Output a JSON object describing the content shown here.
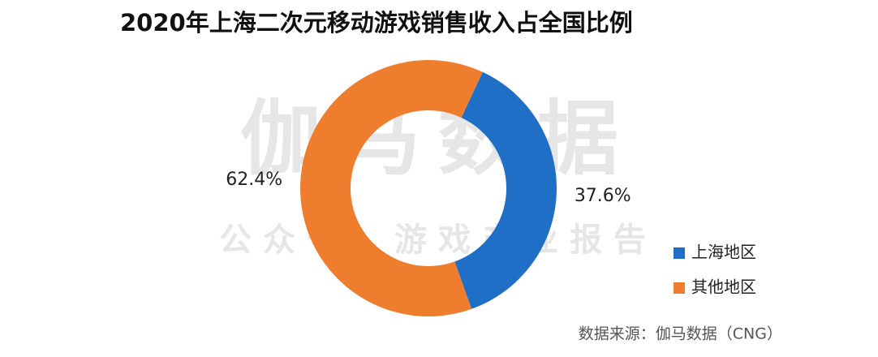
{
  "chart_data": {
    "type": "donut",
    "title": "2020年上海二次元移动游戏销售收入占全国比例",
    "categories": [
      "上海地区",
      "其他地区"
    ],
    "values": [
      37.6,
      62.4
    ],
    "value_labels": [
      "37.6%",
      "62.4%"
    ],
    "colors": [
      "#1f6fc6",
      "#ef7d2e"
    ],
    "annotations": [
      "伽马数据",
      "公众号：游戏产业报告"
    ],
    "source": "数据来源：伽马数据（CNG）",
    "legend": "right"
  }
}
